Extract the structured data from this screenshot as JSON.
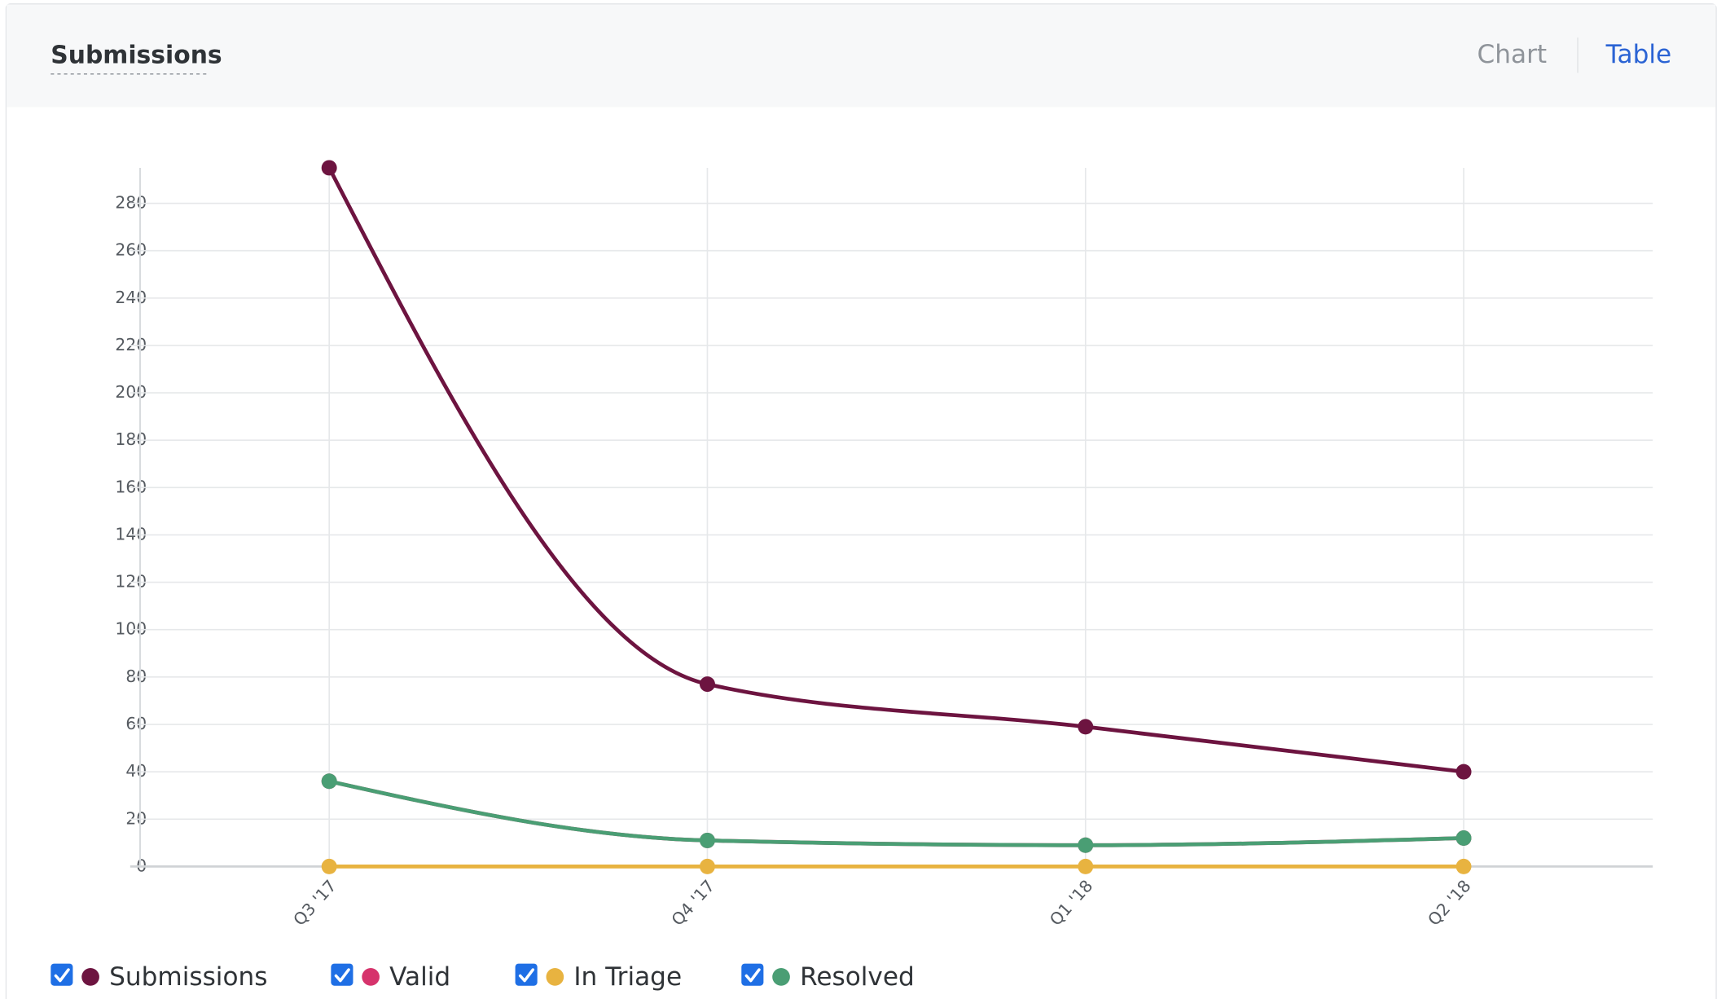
{
  "header": {
    "title": "Submissions",
    "tabs": [
      "Chart",
      "Table"
    ]
  },
  "chart_data": {
    "type": "line",
    "categories": [
      "Q3 '17",
      "Q4 '17",
      "Q1 '18",
      "Q2 '18"
    ],
    "series": [
      {
        "name": "Submissions",
        "color": "#6d1440",
        "values": [
          295,
          77,
          59,
          40
        ]
      },
      {
        "name": "Valid",
        "color": "#d6336c",
        "values": [
          36,
          11,
          9,
          12
        ]
      },
      {
        "name": "In Triage",
        "color": "#e8b340",
        "values": [
          0,
          0,
          0,
          0
        ]
      },
      {
        "name": "Resolved",
        "color": "#4a9e74",
        "values": [
          36,
          11,
          9,
          12
        ]
      }
    ],
    "ylim": [
      0,
      295
    ],
    "yticks": [
      0,
      20,
      40,
      60,
      80,
      100,
      120,
      140,
      160,
      180,
      200,
      220,
      240,
      260,
      280
    ],
    "grid": true
  }
}
